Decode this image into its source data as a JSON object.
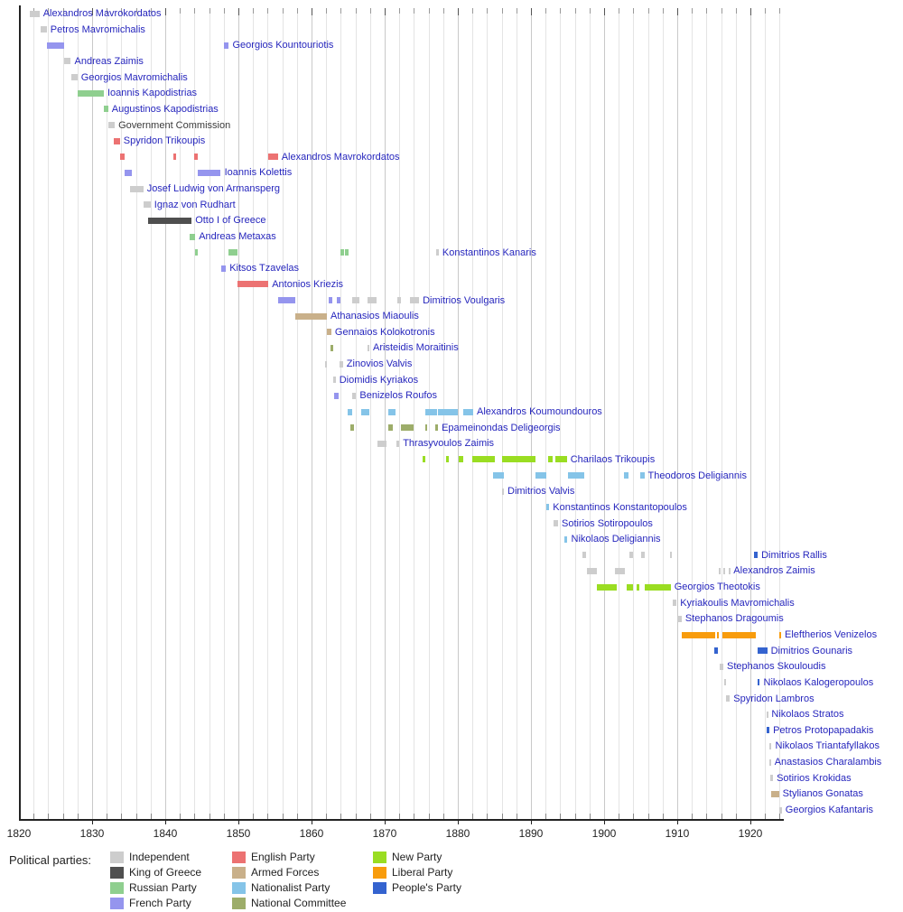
{
  "legend": {
    "title": "Political parties:"
  },
  "chart_data": {
    "type": "timeline",
    "description": "Gantt-style timeline of Greek heads of government 1820-1924, colored by political party",
    "axis": {
      "start": 1820,
      "end": 1924.6,
      "minor_step": 2,
      "major_step": 10,
      "decade_labels": [
        "1820",
        "1830",
        "1840",
        "1850",
        "1860",
        "1870",
        "1880",
        "1890",
        "1900",
        "1910",
        "1920"
      ],
      "grid": true
    },
    "parties": [
      {
        "id": "ind",
        "label": "Independent",
        "color": "#cdcdcd"
      },
      {
        "id": "king",
        "label": "King of Greece",
        "color": "#4f4f4f"
      },
      {
        "id": "rus",
        "label": "Russian Party",
        "color": "#8fcf8f"
      },
      {
        "id": "fr",
        "label": "French Party",
        "color": "#9595ee"
      },
      {
        "id": "eng",
        "label": "English Party",
        "color": "#ec7272"
      },
      {
        "id": "arm",
        "label": "Armed Forces",
        "color": "#c9b08a"
      },
      {
        "id": "nat",
        "label": "Nationalist Party",
        "color": "#85c4e8"
      },
      {
        "id": "nc",
        "label": "National Committee",
        "color": "#9dad6a"
      },
      {
        "id": "new",
        "label": "New Party",
        "color": "#9add22"
      },
      {
        "id": "lib",
        "label": "Liberal Party",
        "color": "#f89c0c"
      },
      {
        "id": "ppl",
        "label": "People's Party",
        "color": "#3463cf"
      }
    ],
    "legend_columns": [
      [
        "ind",
        "king",
        "rus",
        "fr"
      ],
      [
        "eng",
        "arm",
        "nat",
        "nc"
      ],
      [
        "new",
        "lib",
        "ppl"
      ]
    ],
    "label_color_default": "#2626bd",
    "rows": [
      {
        "name": "Alexandros Mavrokordatos",
        "segments": [
          [
            "ind",
            1821.5,
            1822.8
          ]
        ]
      },
      {
        "name": "Petros Mavromichalis",
        "segments": [
          [
            "ind",
            1822.9,
            1823.8
          ]
        ]
      },
      {
        "name": "Georgios Kountouriotis",
        "segments": [
          [
            "fr",
            1823.8,
            1826.2
          ],
          [
            "fr",
            1848.0,
            1848.7
          ]
        ]
      },
      {
        "name": "Andreas Zaimis",
        "segments": [
          [
            "ind",
            1826.2,
            1827.1
          ]
        ]
      },
      {
        "name": "Georgios Mavromichalis",
        "segments": [
          [
            "ind",
            1827.1,
            1828.0
          ]
        ]
      },
      {
        "name": "Ioannis Kapodistrias",
        "segments": [
          [
            "rus",
            1828.0,
            1831.6
          ]
        ]
      },
      {
        "name": "Augustinos Kapodistrias",
        "segments": [
          [
            "rus",
            1831.6,
            1832.2
          ]
        ]
      },
      {
        "name": "Government Commission",
        "segments": [
          [
            "ind",
            1832.2,
            1833.1
          ]
        ],
        "label_color": "#3a3a3a"
      },
      {
        "name": "Spyridon Trikoupis",
        "segments": [
          [
            "eng",
            1833.0,
            1833.8
          ]
        ]
      },
      {
        "name": "Alexandros Mavrokordatos",
        "segments": [
          [
            "eng",
            1833.8,
            1834.5
          ],
          [
            "eng",
            1841.1,
            1841.5
          ],
          [
            "eng",
            1843.9,
            1844.5
          ],
          [
            "eng",
            1854.1,
            1855.4
          ]
        ]
      },
      {
        "name": "Ioannis Kolettis",
        "segments": [
          [
            "fr",
            1834.4,
            1835.4
          ],
          [
            "fr",
            1844.5,
            1847.6
          ]
        ]
      },
      {
        "name": "Josef Ludwig von Armansperg",
        "segments": [
          [
            "ind",
            1835.2,
            1837.0
          ]
        ]
      },
      {
        "name": "Ignaz von Rudhart",
        "segments": [
          [
            "ind",
            1837.0,
            1838.0
          ]
        ]
      },
      {
        "name": "Otto I of Greece",
        "segments": [
          [
            "king",
            1837.7,
            1843.6
          ]
        ]
      },
      {
        "name": "Andreas Metaxas",
        "segments": [
          [
            "rus",
            1843.3,
            1844.1
          ]
        ]
      },
      {
        "name": "Konstantinos Kanaris",
        "segments": [
          [
            "rus",
            1844.1,
            1844.5
          ],
          [
            "rus",
            1848.6,
            1849.9
          ],
          [
            "rus",
            1864.0,
            1864.4
          ],
          [
            "rus",
            1864.6,
            1865.1
          ],
          [
            "ind",
            1877.0,
            1877.4
          ]
        ]
      },
      {
        "name": "Kitsos Tzavelas",
        "segments": [
          [
            "fr",
            1847.6,
            1848.3
          ]
        ]
      },
      {
        "name": "Antonios Kriezis",
        "segments": [
          [
            "eng",
            1849.9,
            1854.1
          ]
        ]
      },
      {
        "name": "Dimitrios Voulgaris",
        "segments": [
          [
            "fr",
            1855.4,
            1857.8
          ],
          [
            "fr",
            1862.4,
            1862.8
          ],
          [
            "fr",
            1863.4,
            1863.9
          ],
          [
            "ind",
            1865.6,
            1866.6
          ],
          [
            "ind",
            1867.7,
            1868.9
          ],
          [
            "ind",
            1871.7,
            1872.2
          ],
          [
            "ind",
            1873.4,
            1874.7
          ]
        ]
      },
      {
        "name": "Athanasios Miaoulis",
        "segments": [
          [
            "arm",
            1857.8,
            1862.1
          ]
        ]
      },
      {
        "name": "Gennaios Kolokotronis",
        "segments": [
          [
            "arm",
            1862.1,
            1862.7
          ]
        ]
      },
      {
        "name": "Aristeidis Moraitinis",
        "segments": [
          [
            "nc",
            1862.6,
            1863.0
          ],
          [
            "ind",
            1867.6,
            1867.9
          ]
        ]
      },
      {
        "name": "Zinovios Valvis",
        "segments": [
          [
            "ind",
            1861.8,
            1862.1
          ],
          [
            "ind",
            1863.8,
            1864.3
          ]
        ]
      },
      {
        "name": "Diomidis Kyriakos",
        "segments": [
          [
            "ind",
            1863.0,
            1863.3
          ]
        ]
      },
      {
        "name": "Benizelos Roufos",
        "segments": [
          [
            "fr",
            1863.1,
            1863.7
          ],
          [
            "ind",
            1865.6,
            1866.1
          ]
        ]
      },
      {
        "name": "Alexandros Koumoundouros",
        "segments": [
          [
            "nat",
            1864.9,
            1865.6
          ],
          [
            "nat",
            1866.8,
            1867.9
          ],
          [
            "nat",
            1870.5,
            1871.5
          ],
          [
            "nat",
            1875.6,
            1877.1
          ],
          [
            "nat",
            1877.3,
            1880.0
          ],
          [
            "nat",
            1880.7,
            1882.1
          ]
        ]
      },
      {
        "name": "Epameinondas Deligeorgis",
        "segments": [
          [
            "nc",
            1865.3,
            1865.8
          ],
          [
            "nc",
            1870.5,
            1871.1
          ],
          [
            "nc",
            1872.2,
            1874.0
          ],
          [
            "nc",
            1875.5,
            1875.8
          ],
          [
            "nc",
            1876.9,
            1877.3
          ]
        ]
      },
      {
        "name": "Thrasyvoulos Zaimis",
        "segments": [
          [
            "ind",
            1869.0,
            1870.2
          ],
          [
            "ind",
            1871.6,
            1872.0
          ]
        ]
      },
      {
        "name": "Charilaos Trikoupis",
        "segments": [
          [
            "new",
            1875.2,
            1875.6
          ],
          [
            "new",
            1878.4,
            1878.8
          ],
          [
            "new",
            1880.1,
            1880.7
          ],
          [
            "new",
            1882.0,
            1885.1
          ],
          [
            "new",
            1886.0,
            1890.6
          ],
          [
            "new",
            1892.3,
            1893.0
          ],
          [
            "new",
            1893.3,
            1894.9
          ]
        ]
      },
      {
        "name": "Theodoros Deligiannis",
        "segments": [
          [
            "nat",
            1884.8,
            1886.3
          ],
          [
            "nat",
            1890.6,
            1892.1
          ],
          [
            "nat",
            1895.0,
            1897.3
          ],
          [
            "nat",
            1902.7,
            1903.3
          ],
          [
            "nat",
            1904.9,
            1905.5
          ]
        ]
      },
      {
        "name": "Dimitrios Valvis",
        "segments": [
          [
            "ind",
            1886.0,
            1886.3
          ]
        ]
      },
      {
        "name": "Konstantinos Konstantopoulos",
        "segments": [
          [
            "nat",
            1892.1,
            1892.5
          ]
        ]
      },
      {
        "name": "Sotirios Sotiropoulos",
        "segments": [
          [
            "ind",
            1893.1,
            1893.7
          ]
        ]
      },
      {
        "name": "Nikolaos Deligiannis",
        "segments": [
          [
            "nat",
            1894.6,
            1895.0
          ]
        ]
      },
      {
        "name": "Dimitrios Rallis",
        "segments": [
          [
            "ind",
            1897.0,
            1897.5
          ],
          [
            "ind",
            1903.4,
            1903.9
          ],
          [
            "ind",
            1905.0,
            1905.5
          ],
          [
            "ind",
            1909.0,
            1909.3
          ],
          [
            "ppl",
            1920.5,
            1921.0
          ]
        ]
      },
      {
        "name": "Alexandros Zaimis",
        "segments": [
          [
            "ind",
            1897.7,
            1899.0
          ],
          [
            "ind",
            1901.5,
            1902.8
          ],
          [
            "ind",
            1915.7,
            1915.9
          ],
          [
            "ind",
            1916.3,
            1916.5
          ],
          [
            "ind",
            1917.0,
            1917.2
          ]
        ]
      },
      {
        "name": "Georgios Theotokis",
        "segments": [
          [
            "new",
            1899.0,
            1901.7
          ],
          [
            "new",
            1903.1,
            1904.0
          ],
          [
            "new",
            1904.5,
            1904.8
          ],
          [
            "new",
            1905.6,
            1909.1
          ]
        ]
      },
      {
        "name": "Kyriakoulis Mavromichalis",
        "segments": [
          [
            "ind",
            1909.4,
            1909.9
          ]
        ]
      },
      {
        "name": "Stephanos Dragoumis",
        "segments": [
          [
            "ind",
            1910.0,
            1910.6
          ]
        ]
      },
      {
        "name": "Eleftherios Venizelos",
        "segments": [
          [
            "lib",
            1910.6,
            1915.2
          ],
          [
            "lib",
            1915.4,
            1915.7
          ],
          [
            "lib",
            1916.2,
            1920.7
          ],
          [
            "lib",
            1923.9,
            1924.2
          ]
        ]
      },
      {
        "name": "Dimitrios Gounaris",
        "segments": [
          [
            "ppl",
            1915.0,
            1915.5
          ],
          [
            "ppl",
            1921.0,
            1922.3
          ]
        ]
      },
      {
        "name": "Stephanos Skouloudis",
        "segments": [
          [
            "ind",
            1915.8,
            1916.3
          ]
        ]
      },
      {
        "name": "Nikolaos Kalogeropoulos",
        "segments": [
          [
            "ind",
            1916.4,
            1916.7
          ],
          [
            "ppl",
            1921.0,
            1921.3
          ]
        ]
      },
      {
        "name": "Spyridon Lambros",
        "segments": [
          [
            "ind",
            1916.7,
            1917.2
          ]
        ]
      },
      {
        "name": "Nikolaos Stratos",
        "segments": [
          [
            "ind",
            1922.2,
            1922.4
          ]
        ]
      },
      {
        "name": "Petros Protopapadakis",
        "segments": [
          [
            "ppl",
            1922.2,
            1922.6
          ]
        ]
      },
      {
        "name": "Nikolaos Triantafyllakos",
        "segments": [
          [
            "ind",
            1922.6,
            1922.9
          ]
        ]
      },
      {
        "name": "Anastasios Charalambis",
        "segments": [
          [
            "ind",
            1922.6,
            1922.8
          ]
        ]
      },
      {
        "name": "Sotirios Krokidas",
        "segments": [
          [
            "ind",
            1922.7,
            1923.1
          ]
        ]
      },
      {
        "name": "Stylianos Gonatas",
        "segments": [
          [
            "arm",
            1922.8,
            1923.9
          ]
        ]
      },
      {
        "name": "Georgios Kafantaris",
        "segments": [
          [
            "ind",
            1924.0,
            1924.3
          ]
        ]
      }
    ]
  }
}
